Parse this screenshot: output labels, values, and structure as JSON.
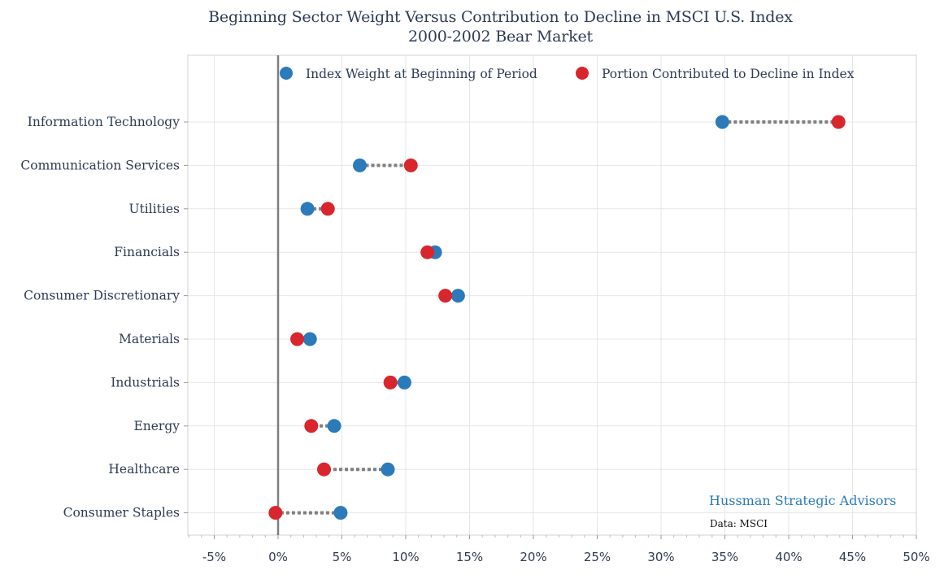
{
  "chart_data": {
    "type": "scatter",
    "title": "Beginning Sector Weight Versus Contribution to Decline in MSCI U.S. Index",
    "subtitle": "2000-2002 Bear Market",
    "categories": [
      "Information Technology",
      "Communication Services",
      "Utilities",
      "Financials",
      "Consumer Discretionary",
      "Materials",
      "Industrials",
      "Energy",
      "Healthcare",
      "Consumer Staples"
    ],
    "series": [
      {
        "name": "Index Weight at Beginning of Period",
        "values": [
          34.8,
          6.4,
          2.3,
          12.3,
          14.1,
          2.5,
          9.9,
          4.4,
          8.6,
          4.9
        ]
      },
      {
        "name": "Portion Contributed to Decline in Index",
        "values": [
          43.9,
          10.4,
          3.9,
          11.7,
          13.1,
          1.5,
          8.8,
          2.6,
          3.6,
          -0.2
        ]
      }
    ],
    "x_ticks": [
      "-5%",
      "0%",
      "5%",
      "10%",
      "15%",
      "20%",
      "25%",
      "30%",
      "35%",
      "40%",
      "45%",
      "50%"
    ],
    "xlim": [
      -7,
      50
    ],
    "grid": true,
    "legend_position": "top",
    "colors": {
      "weight": "#2b7bba",
      "decline": "#d9262e",
      "connector": "#7f7f7f",
      "zero_line": "#7f7f7f",
      "grid": "#e6e6e6"
    }
  },
  "annotations": {
    "brand": "Hussman Strategic Advisors",
    "source": "Data: MSCI"
  }
}
